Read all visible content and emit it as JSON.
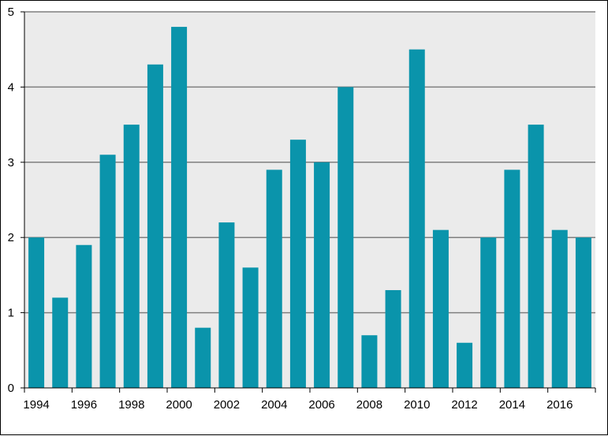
{
  "chart_data": {
    "type": "bar",
    "title": "",
    "xlabel": "",
    "ylabel": "",
    "categories": [
      "1994",
      "1995",
      "1996",
      "1997",
      "1998",
      "1999",
      "2000",
      "2001",
      "2002",
      "2003",
      "2004",
      "2005",
      "2006",
      "2007",
      "2008",
      "2009",
      "2010",
      "2011",
      "2012",
      "2013",
      "2014",
      "2015",
      "2016",
      "2017"
    ],
    "values": [
      2.0,
      1.2,
      1.9,
      3.1,
      3.5,
      4.3,
      4.8,
      0.8,
      2.2,
      1.6,
      2.9,
      3.3,
      3.0,
      4.0,
      0.7,
      1.3,
      4.5,
      2.1,
      0.6,
      2.0,
      2.9,
      3.5,
      2.1,
      2.0
    ],
    "x_tick_labels": [
      "1994",
      "1996",
      "1998",
      "2000",
      "2002",
      "2004",
      "2006",
      "2008",
      "2010",
      "2012",
      "2014",
      "2016"
    ],
    "y_tick_labels": [
      "0",
      "1",
      "2",
      "3",
      "4",
      "5"
    ],
    "ylim": [
      0,
      5
    ],
    "grid": true,
    "legend": "none",
    "colors": {
      "bar": "#0a94ab",
      "plot_background": "#ebebeb",
      "gridline": "#7f7f7f",
      "axis": "#000000"
    }
  }
}
